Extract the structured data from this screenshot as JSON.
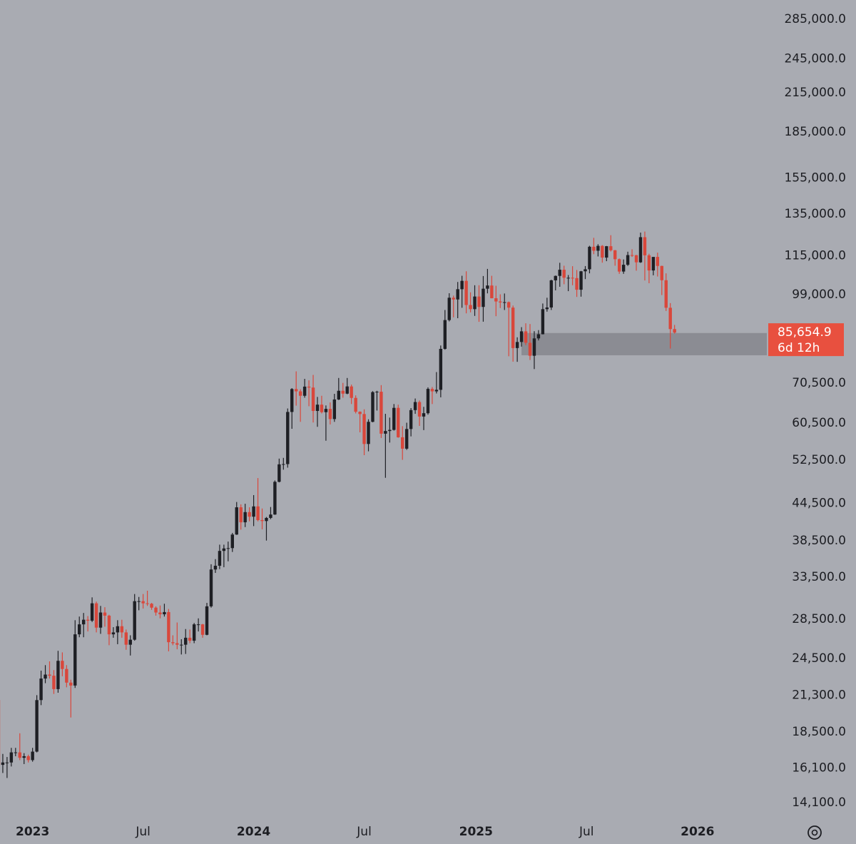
{
  "chart_data": {
    "type": "candlestick",
    "log_scale": true,
    "grid": false,
    "up_color": "#1e1f24",
    "down_color": "#d9473b",
    "zone_color": "#8b8c93",
    "price_box_color": "#e8503f",
    "ylim": [
      13350,
      306900
    ],
    "xlim": [
      0.34,
      180.7
    ],
    "yticks": [
      {
        "value": 285000,
        "label": "285,000.0"
      },
      {
        "value": 245000,
        "label": "245,000.0"
      },
      {
        "value": 215000,
        "label": "215,000.0"
      },
      {
        "value": 185000,
        "label": "185,000.0"
      },
      {
        "value": 155000,
        "label": "155,000.0"
      },
      {
        "value": 135000,
        "label": "135,000.0"
      },
      {
        "value": 115000,
        "label": "115,000.0"
      },
      {
        "value": 99000,
        "label": "99,000.0"
      },
      {
        "value": 70500,
        "label": "70,500.0"
      },
      {
        "value": 60500,
        "label": "60,500.0"
      },
      {
        "value": 52500,
        "label": "52,500.0"
      },
      {
        "value": 44500,
        "label": "44,500.0"
      },
      {
        "value": 38500,
        "label": "38,500.0"
      },
      {
        "value": 33500,
        "label": "33,500.0"
      },
      {
        "value": 28500,
        "label": "28,500.0"
      },
      {
        "value": 24500,
        "label": "24,500.0"
      },
      {
        "value": 21300,
        "label": "21,300.0"
      },
      {
        "value": 18500,
        "label": "18,500.0"
      },
      {
        "value": 16100,
        "label": "16,100.0"
      },
      {
        "value": 14100,
        "label": "14,100.0"
      }
    ],
    "xticks": [
      {
        "value": 8,
        "label": "2023"
      },
      {
        "value": 34,
        "label": "Jul"
      },
      {
        "value": 60,
        "label": "2024"
      },
      {
        "value": 86,
        "label": "Jul"
      },
      {
        "value": 112.3,
        "label": "2025"
      },
      {
        "value": 138.3,
        "label": "Jul"
      },
      {
        "value": 164.4,
        "label": "2026"
      }
    ],
    "last_price": {
      "value": 85654.9,
      "label": "85,654.9"
    },
    "countdown": "6d 12h",
    "zone": {
      "start": 123,
      "top": 85500,
      "bottom": 78500
    },
    "ohlc": [
      [
        20900,
        21450,
        15600,
        16300
      ],
      [
        16300,
        17000,
        15800,
        16450
      ],
      [
        16450,
        16800,
        15500,
        16450
      ],
      [
        16450,
        17400,
        16200,
        17100
      ],
      [
        17100,
        17400,
        16850,
        17100
      ],
      [
        17100,
        18400,
        16600,
        16750
      ],
      [
        16750,
        17050,
        16350,
        16850
      ],
      [
        16850,
        16950,
        16450,
        16600
      ],
      [
        16600,
        17400,
        16500,
        17150
      ],
      [
        17150,
        21300,
        17100,
        20900
      ],
      [
        20900,
        23400,
        20500,
        22700
      ],
      [
        22700,
        23900,
        22300,
        23050
      ],
      [
        23050,
        24250,
        22700,
        22950
      ],
      [
        22950,
        23450,
        21400,
        21800
      ],
      [
        21800,
        25250,
        21500,
        24300
      ],
      [
        24300,
        25100,
        22900,
        23550
      ],
      [
        23550,
        23900,
        21950,
        22350
      ],
      [
        22350,
        22600,
        19550,
        22100
      ],
      [
        22100,
        28400,
        21900,
        26900
      ],
      [
        26900,
        28800,
        26600,
        27950
      ],
      [
        27950,
        29200,
        26600,
        28450
      ],
      [
        28450,
        28850,
        27200,
        28350
      ],
      [
        28350,
        31000,
        28200,
        30300
      ],
      [
        30300,
        30500,
        27100,
        27600
      ],
      [
        27600,
        30000,
        26950,
        29250
      ],
      [
        29250,
        29850,
        27700,
        28900
      ],
      [
        28900,
        29000,
        25800,
        26900
      ],
      [
        26900,
        27650,
        26550,
        27100
      ],
      [
        27100,
        28400,
        25900,
        27750
      ],
      [
        27750,
        28450,
        26550,
        27100
      ],
      [
        27100,
        27400,
        25350,
        25850
      ],
      [
        25850,
        26800,
        24800,
        26350
      ],
      [
        26350,
        31400,
        26250,
        30550
      ],
      [
        30550,
        31050,
        29500,
        30550
      ],
      [
        30550,
        31400,
        29700,
        30300
      ],
      [
        30300,
        31800,
        30000,
        30250
      ],
      [
        30250,
        30350,
        29550,
        29800
      ],
      [
        29800,
        29950,
        28900,
        29250
      ],
      [
        29250,
        30050,
        28600,
        29050
      ],
      [
        29050,
        30250,
        28800,
        29300
      ],
      [
        29300,
        29650,
        25200,
        26100
      ],
      [
        26100,
        26800,
        25800,
        26000
      ],
      [
        26000,
        28150,
        25400,
        25850
      ],
      [
        25850,
        26400,
        24900,
        25850
      ],
      [
        25850,
        27450,
        24950,
        26550
      ],
      [
        26550,
        27400,
        26000,
        26250
      ],
      [
        26250,
        28100,
        26000,
        27950
      ],
      [
        27950,
        28600,
        27200,
        27950
      ],
      [
        27950,
        28000,
        26550,
        26850
      ],
      [
        26850,
        30350,
        26800,
        29950
      ],
      [
        29950,
        35200,
        29800,
        34500
      ],
      [
        34500,
        35900,
        34050,
        35000
      ],
      [
        35000,
        37950,
        34550,
        37050
      ],
      [
        37050,
        37950,
        34800,
        37400
      ],
      [
        37400,
        38400,
        35600,
        37450
      ],
      [
        37450,
        39700,
        36900,
        39450
      ],
      [
        39450,
        44700,
        39400,
        43800
      ],
      [
        43800,
        44300,
        40200,
        41350
      ],
      [
        41350,
        44400,
        40600,
        43000
      ],
      [
        43000,
        43800,
        41500,
        42250
      ],
      [
        42250,
        45900,
        40750,
        43950
      ],
      [
        43950,
        49000,
        41500,
        41700
      ],
      [
        41700,
        43600,
        40250,
        41550
      ],
      [
        41550,
        42200,
        38550,
        42050
      ],
      [
        42050,
        43850,
        41850,
        42600
      ],
      [
        42600,
        48550,
        42550,
        48300
      ],
      [
        48300,
        52800,
        48200,
        51650
      ],
      [
        51650,
        52950,
        50600,
        51700
      ],
      [
        51700,
        64000,
        51000,
        63150
      ],
      [
        63150,
        69200,
        59200,
        68950
      ],
      [
        68950,
        73800,
        64700,
        68350
      ],
      [
        68350,
        68900,
        60800,
        67200
      ],
      [
        67200,
        71700,
        66700,
        69600
      ],
      [
        69600,
        71300,
        64550,
        69350
      ],
      [
        69350,
        72800,
        60650,
        63400
      ],
      [
        63400,
        66900,
        59650,
        64950
      ],
      [
        64950,
        67200,
        62800,
        63100
      ],
      [
        63100,
        64750,
        56550,
        63900
      ],
      [
        63900,
        65500,
        60200,
        61450
      ],
      [
        61450,
        67700,
        60800,
        66250
      ],
      [
        66250,
        71950,
        66100,
        68500
      ],
      [
        68500,
        70600,
        66700,
        67750
      ],
      [
        67750,
        71950,
        67600,
        69650
      ],
      [
        69650,
        70150,
        65100,
        66650
      ],
      [
        66650,
        67300,
        62800,
        63200
      ],
      [
        63200,
        63300,
        58400,
        62650
      ],
      [
        62650,
        63800,
        53500,
        55850
      ],
      [
        55850,
        61400,
        54300,
        60800
      ],
      [
        60800,
        68400,
        60700,
        68150
      ],
      [
        68150,
        68500,
        63500,
        68250
      ],
      [
        68250,
        70000,
        57150,
        58100
      ],
      [
        58100,
        62700,
        49050,
        58700
      ],
      [
        58700,
        61800,
        56150,
        58950
      ],
      [
        58950,
        65100,
        58800,
        64150
      ],
      [
        64150,
        64950,
        57200,
        57300
      ],
      [
        57300,
        59800,
        52550,
        54850
      ],
      [
        54850,
        60600,
        54600,
        59150
      ],
      [
        59150,
        64100,
        57500,
        63600
      ],
      [
        63600,
        66500,
        62700,
        65600
      ],
      [
        65600,
        66000,
        59850,
        62050
      ],
      [
        62050,
        64400,
        58900,
        62850
      ],
      [
        62850,
        69400,
        62500,
        69000
      ],
      [
        69000,
        69500,
        65100,
        68350
      ],
      [
        68350,
        73600,
        67800,
        68750
      ],
      [
        68750,
        81500,
        66800,
        80450
      ],
      [
        80450,
        93400,
        80200,
        89850
      ],
      [
        89850,
        99600,
        89400,
        97900
      ],
      [
        97900,
        98700,
        90800,
        97250
      ],
      [
        97250,
        104000,
        90500,
        101150
      ],
      [
        101150,
        106500,
        94200,
        104450
      ],
      [
        104450,
        108350,
        92200,
        95200
      ],
      [
        95200,
        99950,
        92550,
        93700
      ],
      [
        93700,
        102700,
        91300,
        98350
      ],
      [
        98350,
        102700,
        89250,
        94500
      ],
      [
        94500,
        106400,
        89300,
        101350
      ],
      [
        101350,
        109350,
        99550,
        102600
      ],
      [
        102600,
        106500,
        97700,
        97700
      ],
      [
        97700,
        102500,
        91200,
        96500
      ],
      [
        96500,
        99200,
        94100,
        96150
      ],
      [
        96150,
        99500,
        93400,
        96250
      ],
      [
        96250,
        96500,
        78200,
        94250
      ],
      [
        94250,
        95000,
        76600,
        80700
      ],
      [
        80700,
        84100,
        76550,
        82600
      ],
      [
        82600,
        87450,
        81150,
        86050
      ],
      [
        86050,
        88750,
        81600,
        82350
      ],
      [
        82350,
        88500,
        77100,
        78350
      ],
      [
        78350,
        86100,
        74450,
        83750
      ],
      [
        83750,
        86450,
        83100,
        85100
      ],
      [
        85100,
        95750,
        85050,
        93700
      ],
      [
        93700,
        97900,
        92800,
        94300
      ],
      [
        94300,
        104900,
        93400,
        104650
      ],
      [
        104650,
        106600,
        100700,
        106450
      ],
      [
        106450,
        111950,
        102100,
        109000
      ],
      [
        109000,
        110700,
        103100,
        105700
      ],
      [
        105700,
        106800,
        100400,
        105700
      ],
      [
        105700,
        110500,
        102700,
        105550
      ],
      [
        105550,
        108900,
        98200,
        100950
      ],
      [
        100950,
        108500,
        98300,
        108350
      ],
      [
        108350,
        110550,
        105150,
        109200
      ],
      [
        109200,
        119500,
        107500,
        119050
      ],
      [
        119050,
        123200,
        115700,
        117250
      ],
      [
        117250,
        120200,
        114700,
        119450
      ],
      [
        119450,
        119800,
        112000,
        114200
      ],
      [
        114200,
        119400,
        112650,
        119300
      ],
      [
        119300,
        124450,
        116900,
        117450
      ],
      [
        117450,
        117600,
        110700,
        113500
      ],
      [
        113500,
        113800,
        107300,
        108250
      ],
      [
        108250,
        113400,
        107300,
        111100
      ],
      [
        111100,
        116800,
        110600,
        115300
      ],
      [
        115300,
        117900,
        114500,
        115250
      ],
      [
        115250,
        115400,
        108600,
        112150
      ],
      [
        112150,
        125700,
        111900,
        123500
      ],
      [
        123500,
        126200,
        104600,
        115200
      ],
      [
        115200,
        115900,
        103500,
        108700
      ],
      [
        108700,
        114000,
        106700,
        114500
      ],
      [
        114500,
        116400,
        106200,
        110600
      ],
      [
        110600,
        110700,
        98900,
        104700
      ],
      [
        104700,
        107500,
        93050,
        94200
      ],
      [
        94200,
        95900,
        80550,
        86800
      ],
      [
        86800,
        88200,
        85300,
        85654.9
      ]
    ]
  }
}
